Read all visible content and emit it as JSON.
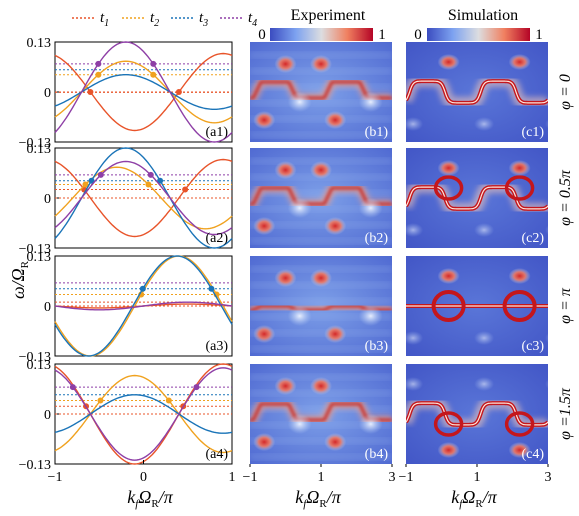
{
  "legend": {
    "items": [
      {
        "sym": "t",
        "sub": "1",
        "color": "#e8542a"
      },
      {
        "sym": "t",
        "sub": "2",
        "color": "#f0a21f"
      },
      {
        "sym": "t",
        "sub": "3",
        "color": "#1a74b8"
      },
      {
        "sym": "t",
        "sub": "4",
        "color": "#8e3fa6"
      }
    ]
  },
  "titles": {
    "experiment": "Experiment",
    "simulation": "Simulation",
    "colorbar_min": "0",
    "colorbar_max": "1"
  },
  "axes": {
    "ylabel_main": "ω/Ω",
    "ylabel_sub": "R",
    "xlabel_main_k": "k",
    "xlabel_sub_f": "f",
    "xlabel_omega": "Ω",
    "xlabel_sub_r": "R",
    "xlabel_tail": "/π",
    "col_a_yticks": [
      "0.13",
      "0",
      "−0.13"
    ],
    "col_a_xticks": [
      "−1",
      "0",
      "1"
    ],
    "col_bc_xticks": [
      "−1",
      "1",
      "3"
    ]
  },
  "phases": [
    {
      "label": "φ = 0"
    },
    {
      "label": "φ = 0.5π"
    },
    {
      "label": "φ = π"
    },
    {
      "label": "φ =1.5π"
    }
  ],
  "panels": {
    "a": [
      "(a1)",
      "(a2)",
      "(a3)",
      "(a4)"
    ],
    "b": [
      "(b1)",
      "(b2)",
      "(b3)",
      "(b4)"
    ],
    "c": [
      "(c1)",
      "(c2)",
      "(c3)",
      "(c4)"
    ]
  },
  "chart_data": {
    "type": "line",
    "x_range": [
      -1,
      1
    ],
    "ylim": [
      -0.13,
      0.13
    ],
    "series_names": [
      "t1",
      "t2",
      "t3",
      "t4"
    ],
    "rows": [
      {
        "phi": "0",
        "bands": [
          {
            "series": "t1",
            "amp": 0.1,
            "phase": 0.9
          },
          {
            "series": "t2",
            "amp": 0.08,
            "phase": -0.2
          },
          {
            "series": "t3",
            "amp": 0.045,
            "phase": -0.2
          },
          {
            "series": "t4",
            "amp": 0.13,
            "phase": -0.2
          }
        ],
        "levels": [
          0.073,
          0.058,
          0.045,
          0.0,
          -0.001
        ]
      },
      {
        "phi": "0.5π",
        "bands": [
          {
            "series": "t1",
            "amp": 0.1,
            "phase": 0.9
          },
          {
            "series": "t2",
            "amp": 0.08,
            "phase": -0.3
          },
          {
            "series": "t3",
            "amp": 0.13,
            "phase": -0.2
          },
          {
            "series": "t4",
            "amp": 0.095,
            "phase": -0.2
          }
        ],
        "levels": [
          0.06,
          0.045,
          0.035,
          0.022,
          0.0
        ]
      },
      {
        "phi": "π",
        "bands": [
          {
            "series": "t1",
            "amp": 0.005,
            "phase": 0.5
          },
          {
            "series": "t2",
            "amp": 0.13,
            "phase": 0.4
          },
          {
            "series": "t3",
            "amp": 0.13,
            "phase": 0.38
          },
          {
            "series": "t4",
            "amp": 0.01,
            "phase": 0.5
          }
        ],
        "levels": [
          0.06,
          0.045,
          0.03,
          0.01,
          0.0
        ]
      },
      {
        "phi": "1.5π",
        "bands": [
          {
            "series": "t1",
            "amp": 0.13,
            "phase": 0.9
          },
          {
            "series": "t2",
            "amp": 0.1,
            "phase": -0.1
          },
          {
            "series": "t3",
            "amp": 0.05,
            "phase": -0.1
          },
          {
            "series": "t4",
            "amp": 0.12,
            "phase": 0.9
          }
        ],
        "levels": [
          0.07,
          0.05,
          0.035,
          0.02,
          0.0
        ]
      }
    ]
  },
  "colors": {
    "map_low": "#3d4fc8",
    "map_mid": "#a9c4f2",
    "map_high": "#b7262b"
  }
}
